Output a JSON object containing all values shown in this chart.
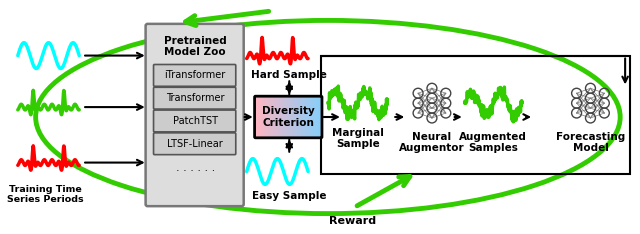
{
  "bg_color": "#ffffff",
  "green": "#33cc00",
  "black": "#000000",
  "model_zoo_label": "Pretrained\nModel Zoo",
  "models": [
    "iTransformer",
    "Transformer",
    "PatchTST",
    "LTSF-Linear"
  ],
  "hard_label": "Hard Sample",
  "easy_label": "Easy Sample",
  "diversity_label": "Diversity\nCriterion",
  "marginal_label": "Marginal\nSample",
  "neural_label": "Neural\nAugmentor",
  "augmented_label": "Augmented\nSamples",
  "forecasting_label": "Forecasting\nModel",
  "reward_label": "Reward",
  "training_label": "Training Time\nSeries Periods",
  "figw": 6.4,
  "figh": 2.34,
  "dpi": 100
}
